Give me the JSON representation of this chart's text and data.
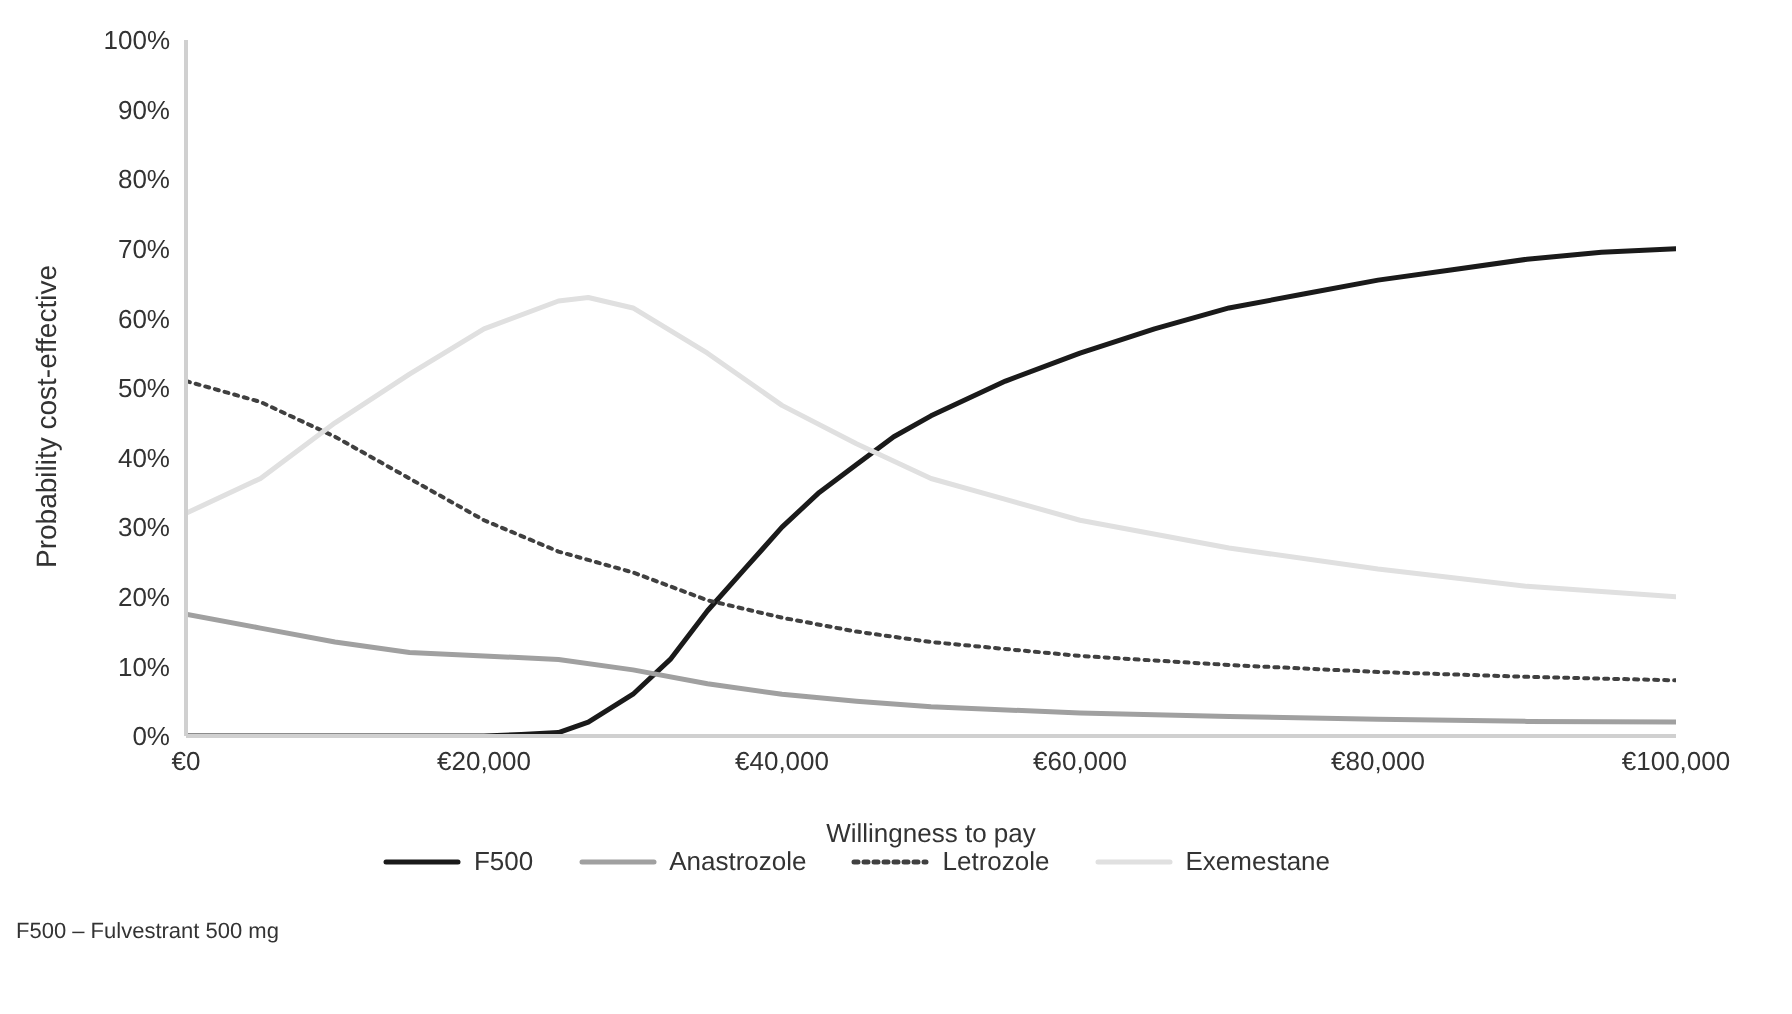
{
  "chart_data": {
    "type": "line",
    "xlabel": "Willingness to pay",
    "ylabel": "Probability cost-effective",
    "xlim": [
      0,
      100000
    ],
    "xticks": [
      {
        "value": 0,
        "label": "€0"
      },
      {
        "value": 20000,
        "label": "€20,000"
      },
      {
        "value": 40000,
        "label": "€40,000"
      },
      {
        "value": 60000,
        "label": "€60,000"
      },
      {
        "value": 80000,
        "label": "€80,000"
      },
      {
        "value": 100000,
        "label": "€100,000"
      }
    ],
    "ylim": [
      0,
      100
    ],
    "yticks": [
      {
        "value": 0,
        "label": "0%"
      },
      {
        "value": 10,
        "label": "10%"
      },
      {
        "value": 20,
        "label": "20%"
      },
      {
        "value": 30,
        "label": "30%"
      },
      {
        "value": 40,
        "label": "40%"
      },
      {
        "value": 50,
        "label": "50%"
      },
      {
        "value": 60,
        "label": "60%"
      },
      {
        "value": 70,
        "label": "70%"
      },
      {
        "value": 80,
        "label": "80%"
      },
      {
        "value": 90,
        "label": "90%"
      },
      {
        "value": 100,
        "label": "100%"
      }
    ],
    "grid": false,
    "legend": "bottom",
    "marker": "none",
    "series": [
      {
        "name": "F500",
        "color": "#1a1a1a",
        "line_style": "solid",
        "x": [
          0,
          10000,
          20000,
          22500,
          25000,
          27000,
          30000,
          32500,
          35000,
          37500,
          40000,
          42500,
          45000,
          47500,
          50000,
          55000,
          60000,
          65000,
          70000,
          75000,
          80000,
          85000,
          90000,
          95000,
          100000
        ],
        "values": [
          0,
          0,
          0,
          0.2,
          0.5,
          2,
          6,
          11,
          18,
          24,
          30,
          35,
          39,
          43,
          46,
          51,
          55,
          58.5,
          61.5,
          63.5,
          65.5,
          67,
          68.5,
          69.5,
          70
        ]
      },
      {
        "name": "Anastrozole",
        "color": "#a0a0a0",
        "line_style": "solid",
        "x": [
          0,
          5000,
          10000,
          15000,
          20000,
          25000,
          30000,
          35000,
          40000,
          45000,
          50000,
          60000,
          70000,
          80000,
          90000,
          100000
        ],
        "values": [
          17.5,
          15.5,
          13.5,
          12,
          11.5,
          11,
          9.5,
          7.5,
          6,
          5,
          4.2,
          3.3,
          2.8,
          2.4,
          2.1,
          2
        ]
      },
      {
        "name": "Letrozole",
        "color": "#404040",
        "line_style": "dotted",
        "x": [
          0,
          5000,
          10000,
          15000,
          20000,
          25000,
          30000,
          35000,
          40000,
          45000,
          50000,
          60000,
          70000,
          80000,
          90000,
          100000
        ],
        "values": [
          51,
          48,
          43,
          37,
          31,
          26.5,
          23.5,
          19.5,
          17,
          15,
          13.5,
          11.5,
          10.2,
          9.2,
          8.5,
          8
        ]
      },
      {
        "name": "Exemestane",
        "color": "#e0e0e0",
        "line_style": "solid",
        "x": [
          0,
          5000,
          10000,
          15000,
          20000,
          25000,
          27000,
          30000,
          35000,
          40000,
          45000,
          50000,
          55000,
          60000,
          70000,
          80000,
          90000,
          100000
        ],
        "values": [
          32,
          37,
          45,
          52,
          58.5,
          62.5,
          63,
          61.5,
          55,
          47.5,
          42,
          37,
          34,
          31,
          27,
          24,
          21.5,
          20
        ]
      }
    ],
    "annotations": [
      "F500 – Fulvestrant 500 mg"
    ]
  }
}
